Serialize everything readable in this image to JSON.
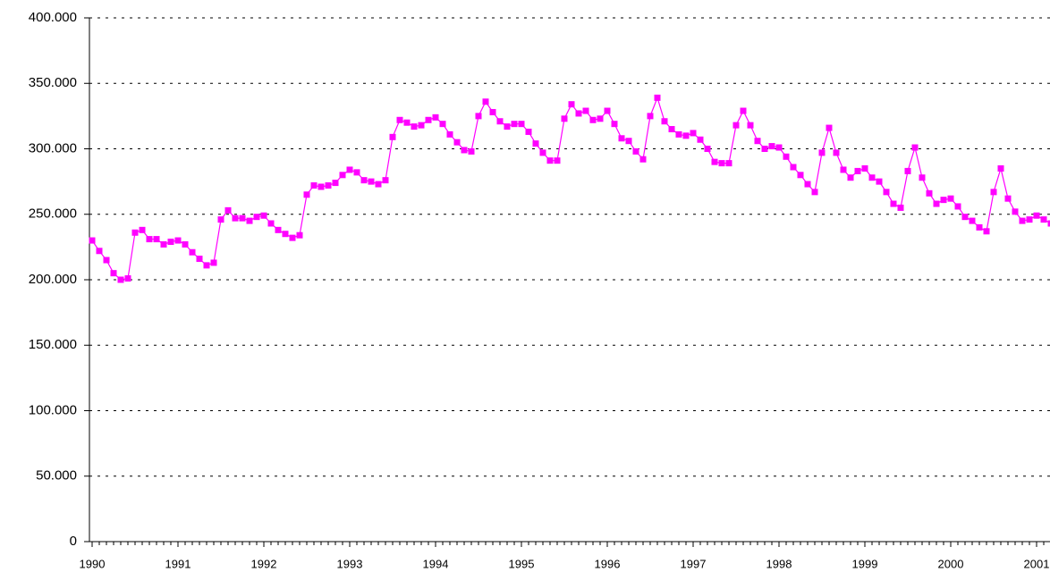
{
  "chart_data": {
    "type": "line",
    "categories": [
      "1990",
      null,
      null,
      null,
      null,
      null,
      null,
      null,
      null,
      null,
      null,
      null,
      "1991",
      null,
      null,
      null,
      null,
      null,
      null,
      null,
      null,
      null,
      null,
      null,
      "1992",
      null,
      null,
      null,
      null,
      null,
      null,
      null,
      null,
      null,
      null,
      null,
      "1993",
      null,
      null,
      null,
      null,
      null,
      null,
      null,
      null,
      null,
      null,
      null,
      "1994",
      null,
      null,
      null,
      null,
      null,
      null,
      null,
      null,
      null,
      null,
      null,
      "1995",
      null,
      null,
      null,
      null,
      null,
      null,
      null,
      null,
      null,
      null,
      null,
      "1996",
      null,
      null,
      null,
      null,
      null,
      null,
      null,
      null,
      null,
      null,
      null,
      "1997",
      null,
      null,
      null,
      null,
      null,
      null,
      null,
      null,
      null,
      null,
      null,
      "1998",
      null,
      null,
      null,
      null,
      null,
      null,
      null,
      null,
      null,
      null,
      null,
      "1999",
      null,
      null,
      null,
      null,
      null,
      null,
      null,
      null,
      null,
      null,
      null,
      "2000",
      null,
      null,
      null,
      null,
      null,
      null,
      null,
      null,
      null,
      null,
      null,
      "2001",
      null,
      null
    ],
    "series": [
      {
        "color": "#ff00ff",
        "values": [
          230000,
          222000,
          215000,
          205000,
          200000,
          201000,
          236000,
          238000,
          231000,
          231000,
          227000,
          229000,
          230000,
          227000,
          221000,
          216000,
          211000,
          213000,
          246000,
          253000,
          247000,
          247000,
          245000,
          248000,
          249000,
          243000,
          238000,
          235000,
          232000,
          234000,
          265000,
          272000,
          271000,
          272000,
          274000,
          280000,
          284000,
          282000,
          276000,
          275000,
          273000,
          276000,
          309000,
          322000,
          320000,
          317000,
          318000,
          322000,
          324000,
          319000,
          311000,
          305000,
          299000,
          298000,
          325000,
          336000,
          328000,
          321000,
          317000,
          319000,
          319000,
          313000,
          304000,
          297000,
          291000,
          291000,
          323000,
          334000,
          327000,
          329000,
          322000,
          323000,
          329000,
          319000,
          308000,
          306000,
          298000,
          292000,
          325000,
          339000,
          321000,
          315000,
          311000,
          310000,
          312000,
          307000,
          300000,
          290000,
          289000,
          289000,
          318000,
          329000,
          318000,
          306000,
          300000,
          302000,
          301000,
          294000,
          286000,
          280000,
          273000,
          267000,
          297000,
          316000,
          297000,
          284000,
          278000,
          283000,
          285000,
          278000,
          275000,
          267000,
          258000,
          255000,
          283000,
          301000,
          278000,
          266000,
          258000,
          261000,
          262000,
          256000,
          248000,
          245000,
          240000,
          237000,
          267000,
          285000,
          262000,
          252000,
          245000,
          246000,
          249000,
          246000,
          243000
        ]
      }
    ],
    "ylim": [
      0,
      400000
    ],
    "yticks": [
      0,
      {
        "value": 50000,
        "label": "50.000"
      },
      {
        "value": 100000,
        "label": "100.000"
      },
      {
        "value": 150000,
        "label": "150.000"
      },
      {
        "value": 200000,
        "label": "200.000"
      },
      {
        "value": 250000,
        "label": "250.000"
      },
      {
        "value": 300000,
        "label": "300.000"
      },
      {
        "value": 350000,
        "label": "350.000"
      },
      {
        "value": 400000,
        "label": "400.000"
      }
    ],
    "grid": true
  }
}
